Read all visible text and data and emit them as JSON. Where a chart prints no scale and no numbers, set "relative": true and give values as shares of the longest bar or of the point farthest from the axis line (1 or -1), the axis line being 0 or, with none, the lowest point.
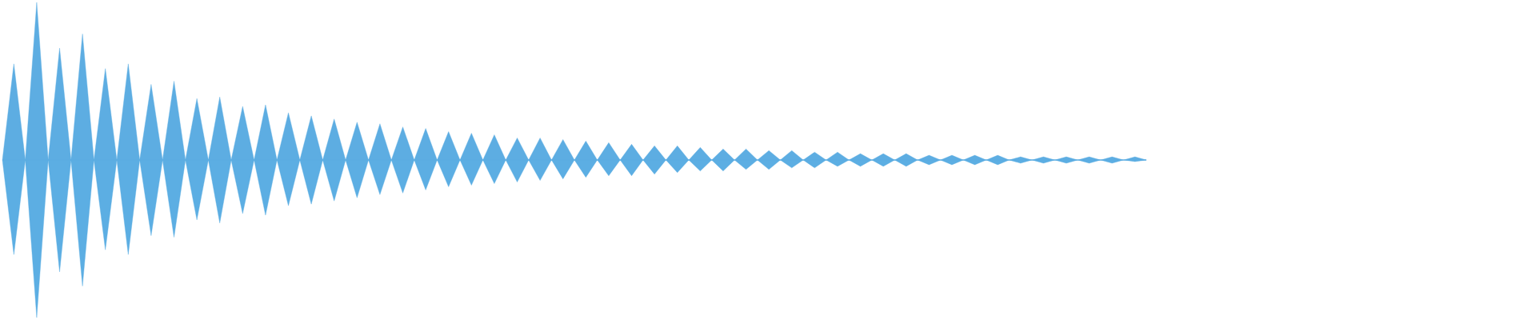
{
  "chart_data": {
    "type": "area",
    "relative": true,
    "categories": [
      null,
      null,
      null,
      null,
      null,
      null,
      null,
      null,
      null,
      null,
      null,
      null,
      null,
      null,
      null,
      null,
      null,
      null,
      null,
      null,
      null,
      null,
      null,
      null,
      null,
      null,
      null,
      null,
      null,
      null,
      null,
      null,
      null,
      null,
      null,
      null,
      null,
      null,
      null,
      null,
      null,
      null,
      null,
      null,
      null,
      null,
      null,
      null,
      null,
      null,
      null,
      null,
      null,
      null,
      null,
      null,
      null,
      null,
      null,
      null,
      null,
      null,
      null,
      null,
      null,
      null,
      null,
      null,
      null,
      null,
      null,
      null,
      null,
      null,
      null,
      null,
      null,
      null,
      null,
      null,
      null,
      null,
      null,
      null,
      null,
      null,
      null,
      null,
      null,
      null,
      null,
      null,
      null,
      null,
      null,
      null,
      null,
      null,
      null,
      null,
      null
    ],
    "series": [
      {
        "color": "#5dade2",
        "values": [
          0,
          0.61,
          0,
          1,
          0,
          0.71,
          0,
          0.8,
          0,
          0.58,
          0,
          0.61,
          0,
          0.48,
          0,
          0.5,
          0,
          0.39,
          0,
          0.4,
          0,
          0.34,
          0,
          0.35,
          0,
          0.3,
          0,
          0.28,
          0,
          0.26,
          0,
          0.24,
          0,
          0.23,
          0,
          0.21,
          0,
          0.2,
          0,
          0.18,
          0,
          0.17,
          0,
          0.16,
          0,
          0.14,
          0,
          0.14,
          0,
          0.13,
          0,
          0.12,
          0,
          0.11,
          0,
          0.1,
          0,
          0.09,
          0,
          0.09,
          0,
          0.08,
          0,
          0.07,
          0,
          0.07,
          0,
          0.06,
          0,
          0.06,
          0,
          0.05,
          0,
          0.05,
          0,
          0.04,
          0,
          0.04,
          0,
          0.04,
          0,
          0.03,
          0,
          0.03,
          0,
          0.03,
          0,
          0.03,
          0,
          0.02,
          0,
          0.02,
          0,
          0.02,
          0,
          0.02,
          0,
          0.02,
          0,
          0.02,
          0
        ]
      },
      {
        "color": "#5caee3",
        "values": [
          0,
          -0.6,
          0,
          -1,
          0,
          -0.71,
          0,
          -0.8,
          0,
          -0.57,
          0,
          -0.6,
          0,
          -0.48,
          0,
          -0.49,
          0,
          -0.38,
          0,
          -0.4,
          0,
          -0.34,
          0,
          -0.35,
          0,
          -0.29,
          0,
          -0.28,
          0,
          -0.26,
          0,
          -0.24,
          0,
          -0.22,
          0,
          -0.21,
          0,
          -0.19,
          0,
          -0.17,
          0,
          -0.16,
          0,
          -0.15,
          0,
          -0.14,
          0,
          -0.13,
          0,
          -0.12,
          0,
          -0.11,
          0,
          -0.1,
          0,
          -0.1,
          0,
          -0.09,
          0,
          -0.08,
          0,
          -0.07,
          0,
          -0.07,
          0,
          -0.06,
          0,
          -0.06,
          0,
          -0.05,
          0,
          -0.05,
          0,
          -0.04,
          0,
          -0.04,
          0,
          -0.04,
          0,
          -0.04,
          0,
          -0.03,
          0,
          -0.03,
          0,
          -0.03,
          0,
          -0.03,
          0,
          -0.02,
          0,
          -0.02,
          0,
          -0.02,
          0,
          -0.02,
          0,
          -0.02,
          0,
          -0.01,
          0
        ]
      }
    ]
  }
}
